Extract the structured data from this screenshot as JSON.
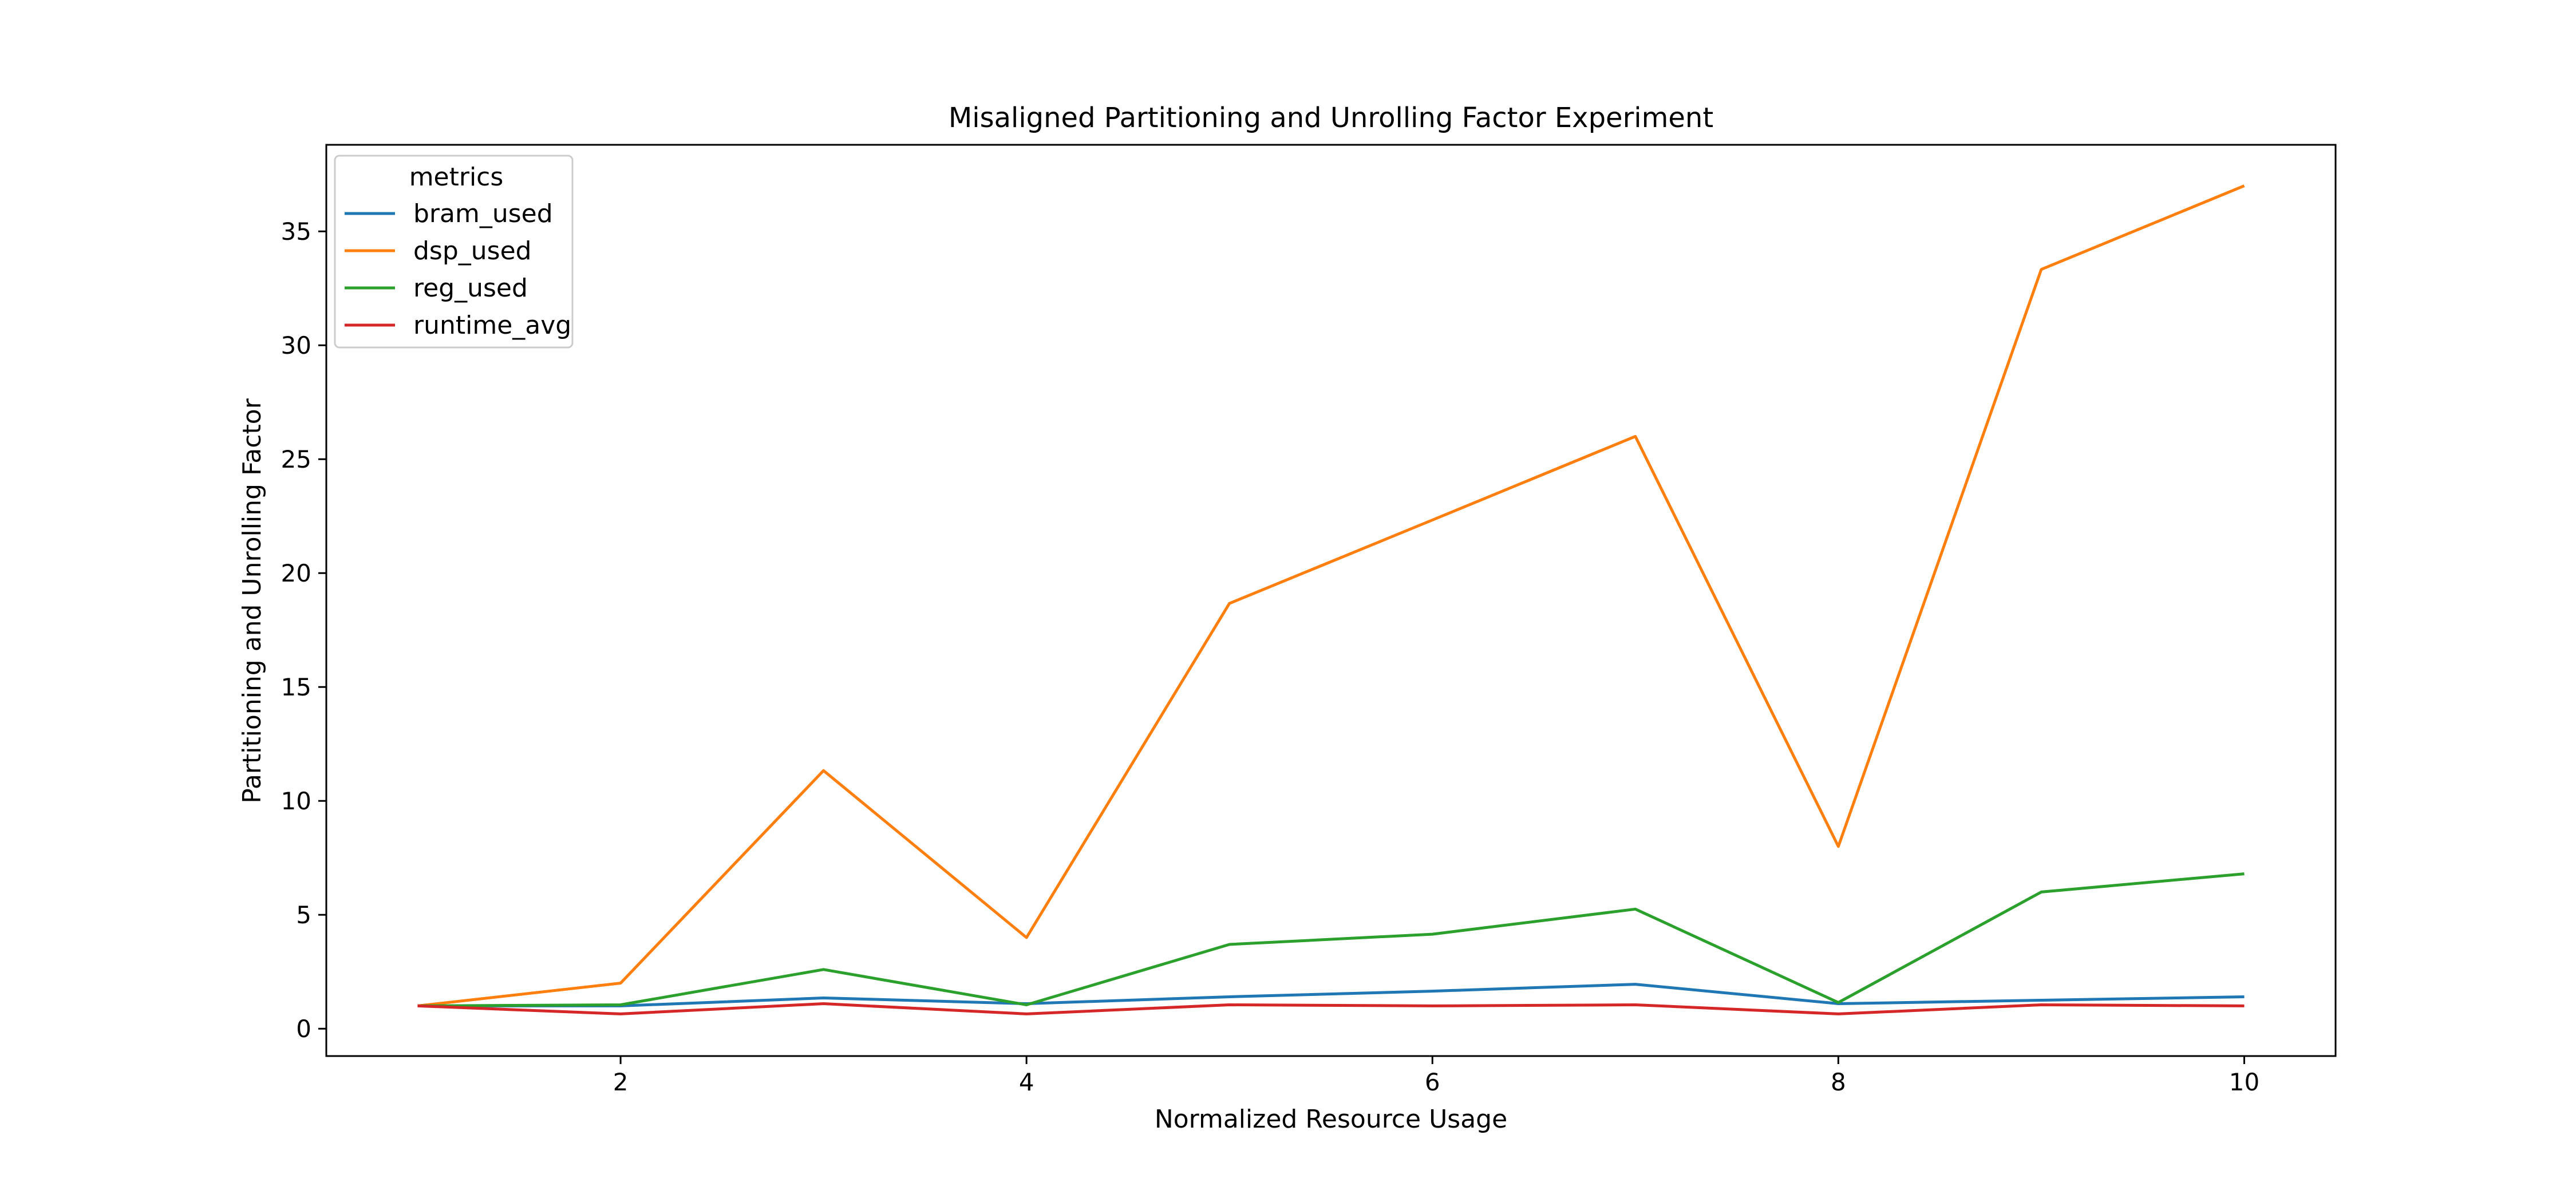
{
  "chart_data": {
    "type": "line",
    "title": "Misaligned Partitioning and Unrolling Factor Experiment",
    "xlabel": "Normalized Resource Usage",
    "ylabel": "Partitioning and Unrolling Factor",
    "xlim": [
      0.55,
      10.45
    ],
    "ylim": [
      -1.2,
      38.8
    ],
    "x_ticks": [
      2,
      4,
      6,
      8,
      10
    ],
    "y_ticks": [
      0,
      5,
      10,
      15,
      20,
      25,
      30,
      35
    ],
    "grid": false,
    "legend": {
      "title": "metrics",
      "position": "upper-left"
    },
    "x": [
      1,
      2,
      3,
      4,
      5,
      6,
      7,
      8,
      9,
      10
    ],
    "series": [
      {
        "name": "bram_used",
        "color": "#1f77b4",
        "values": [
          1.0,
          1.0,
          1.35,
          1.1,
          1.4,
          1.65,
          1.95,
          1.1,
          1.25,
          1.4
        ]
      },
      {
        "name": "dsp_used",
        "color": "#ff7f0e",
        "values": [
          1.0,
          2.0,
          11.33,
          4.0,
          18.67,
          22.33,
          26.0,
          8.0,
          33.33,
          37.0
        ]
      },
      {
        "name": "reg_used",
        "color": "#2ca02c",
        "values": [
          1.0,
          1.05,
          2.6,
          1.05,
          3.7,
          4.15,
          5.25,
          1.15,
          6.0,
          6.8
        ]
      },
      {
        "name": "runtime_avg",
        "color": "#d62728",
        "values": [
          1.0,
          0.65,
          1.1,
          0.65,
          1.05,
          1.0,
          1.05,
          0.65,
          1.05,
          1.0
        ]
      }
    ]
  }
}
